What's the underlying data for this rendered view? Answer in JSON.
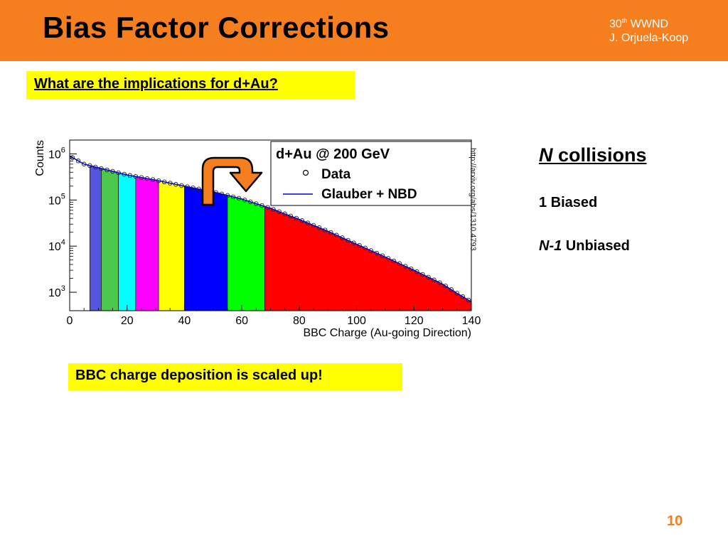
{
  "slide": {
    "title": "Bias Factor Corrections",
    "conference_number": "30",
    "conference_sup": "th",
    "conference_name": "WWND",
    "author": "J. Orjuela-Koop",
    "question": "What are the implications for d+Au?",
    "note": "BBC charge deposition is scaled up!",
    "right_title_italic": "N",
    "right_title_rest": " collisions",
    "biased_line": "1 Biased",
    "unbiased_italic": "N-1",
    "unbiased_rest": " Unbiased",
    "arxiv": "http://arxiv.org/abs/1310.4793",
    "page_number": "10",
    "header_color": "#f57f1f",
    "callout_color": "#ffff00",
    "arrow_color": "#f57f1f"
  },
  "chart_data": {
    "type": "area",
    "xlabel": "BBC Charge (Au-going Direction)",
    "ylabel": "Counts",
    "xlim": [
      0,
      140
    ],
    "ylim_log10": [
      2.6,
      6.3
    ],
    "log_y": true,
    "x_ticks": [
      "0",
      "20",
      "40",
      "60",
      "80",
      "100",
      "120",
      "140"
    ],
    "y_ticks": [
      {
        "base": "10",
        "exp": "3",
        "value": 1000
      },
      {
        "base": "10",
        "exp": "4",
        "value": 10000
      },
      {
        "base": "10",
        "exp": "5",
        "value": 100000
      },
      {
        "base": "10",
        "exp": "6",
        "value": 1000000
      }
    ],
    "legend": {
      "placement": "top-right",
      "title": "d+Au @ 200 GeV",
      "entries": [
        {
          "label": "Data",
          "marker": "open-circle"
        },
        {
          "label": "Glauber + NBD",
          "marker": "line",
          "color": "#0000cc"
        }
      ]
    },
    "curve": {
      "x": [
        0,
        5,
        10,
        20,
        30,
        40,
        50,
        60,
        70,
        80,
        90,
        100,
        110,
        120,
        130,
        135,
        140
      ],
      "y": [
        900000,
        600000,
        500000,
        350000,
        270000,
        200000,
        150000,
        105000,
        66000,
        38000,
        21000,
        11000,
        5800,
        3000,
        1500,
        950,
        620
      ]
    },
    "bands": [
      {
        "x0": 0,
        "x1": 7,
        "color": "#ffffff"
      },
      {
        "x0": 7,
        "x1": 11,
        "color": "#5555dd"
      },
      {
        "x0": 11,
        "x1": 17,
        "color": "#4cc94c"
      },
      {
        "x0": 17,
        "x1": 23,
        "color": "#00ffff"
      },
      {
        "x0": 23,
        "x1": 31,
        "color": "#ff00ff"
      },
      {
        "x0": 31,
        "x1": 40,
        "color": "#ffff00"
      },
      {
        "x0": 40,
        "x1": 55,
        "color": "#0000ff"
      },
      {
        "x0": 55,
        "x1": 68,
        "color": "#00ff00"
      },
      {
        "x0": 68,
        "x1": 140,
        "color": "#ff0000"
      }
    ]
  }
}
